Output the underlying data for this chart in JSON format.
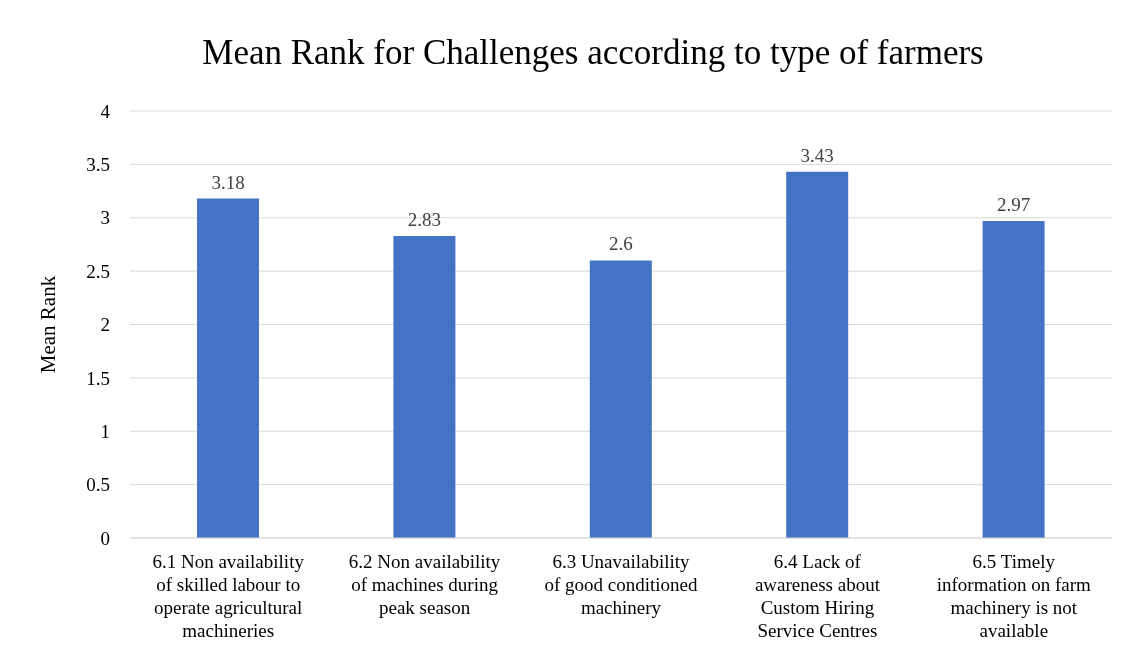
{
  "chart_data": {
    "type": "bar",
    "title": "Mean Rank for Challenges according to type of farmers",
    "ylabel": "Mean Rank",
    "categories": [
      "6.1 Non availability of skilled labour to operate agricultural machineries",
      "6.2 Non availability of machines during peak season",
      "6.3 Unavailability of good conditioned machinery",
      "6.4 Lack of awareness about Custom Hiring Service Centres",
      "6.5 Timely information on farm machinery is not available"
    ],
    "values": [
      3.18,
      2.83,
      2.6,
      3.43,
      2.97
    ],
    "color": "#4472c4",
    "ylim": [
      0,
      4
    ],
    "yticks": [
      0,
      0.5,
      1,
      1.5,
      2,
      2.5,
      3,
      3.5,
      4
    ],
    "grid": "y",
    "data_labels": true
  }
}
